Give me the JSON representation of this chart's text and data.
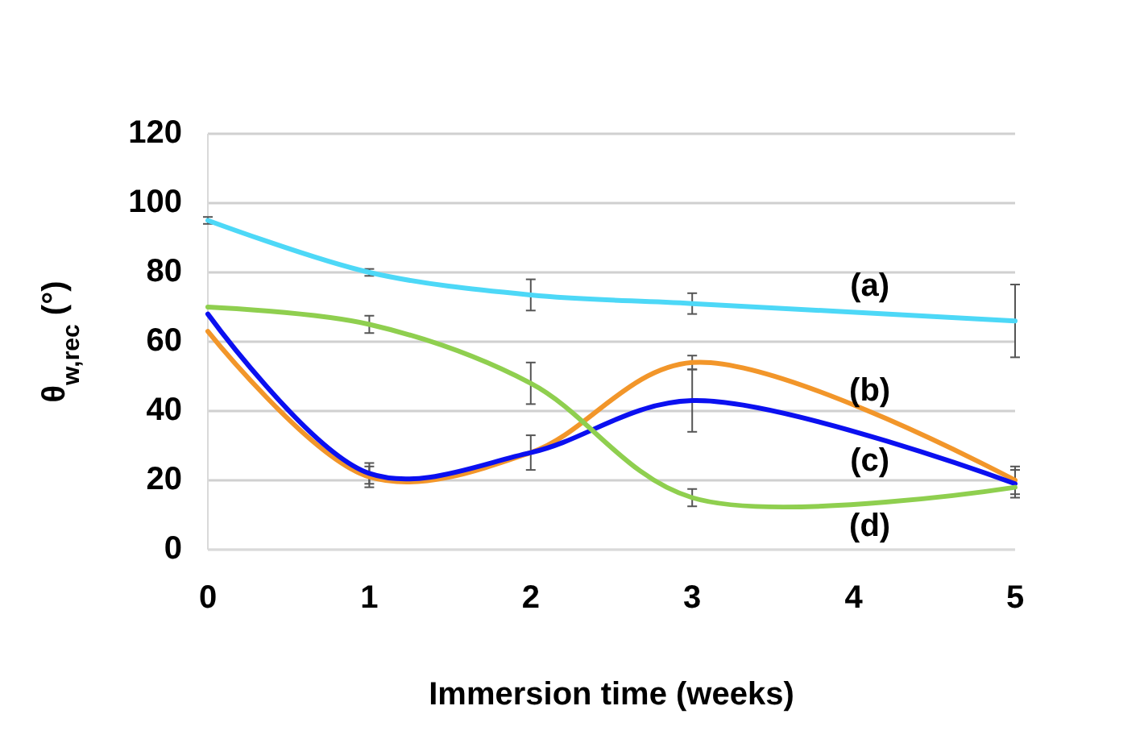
{
  "chart_data": {
    "type": "line",
    "xlabel": "Immersion time (weeks)",
    "ylabel": "θ$_{w,rec}$ (°)",
    "x": [
      0,
      1,
      2,
      3,
      5
    ],
    "xlim": [
      0,
      5
    ],
    "xticks": [
      0,
      1,
      2,
      3,
      4,
      5
    ],
    "ylim": [
      0,
      120
    ],
    "yticks": [
      0,
      20,
      40,
      60,
      80,
      100,
      120
    ],
    "grid": "y",
    "marker": "none",
    "line_style": "solid",
    "series": [
      {
        "name": "(a)",
        "color": "#4dd8f7",
        "values": [
          95,
          80,
          73.5,
          71,
          66
        ],
        "errors": [
          1,
          1,
          4.5,
          3,
          10.5
        ]
      },
      {
        "name": "(b)",
        "color": "#f2962a",
        "values": [
          63,
          21,
          28,
          54,
          20
        ],
        "errors": [
          null,
          3,
          null,
          2,
          4
        ]
      },
      {
        "name": "(c)",
        "color": "#0b10f0",
        "values": [
          68,
          22,
          28,
          43,
          19
        ],
        "errors": [
          null,
          3,
          5,
          9,
          4
        ]
      },
      {
        "name": "(d)",
        "color": "#8fcf4f",
        "values": [
          70,
          65,
          48,
          15,
          18
        ],
        "errors": [
          null,
          2.5,
          6,
          2.5,
          null
        ]
      }
    ]
  }
}
